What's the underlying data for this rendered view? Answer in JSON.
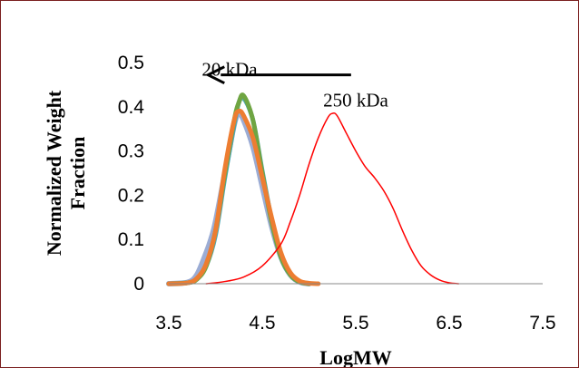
{
  "chart_data": {
    "type": "line",
    "ylabel": "Normalized Weight Fraction",
    "xlabel": "LogMW",
    "xlim": [
      3.5,
      7.5
    ],
    "ylim": [
      0,
      0.5
    ],
    "xticks": [
      "3.5",
      "4.5",
      "5.5",
      "6.5",
      "7.5"
    ],
    "yticks": [
      "0",
      "0.1",
      "0.2",
      "0.3",
      "0.4",
      "0.5"
    ],
    "grid": false,
    "legend": "none",
    "annotations": [
      {
        "text": "20 kDa",
        "x": 4.15,
        "y": 0.485
      },
      {
        "text": "250 kDa",
        "x": 5.5,
        "y": 0.415
      }
    ],
    "arrow": {
      "from": [
        5.45,
        0.472
      ],
      "to": [
        3.92,
        0.472
      ]
    },
    "series": [
      {
        "color": "#ff0000",
        "width": 1.5,
        "x": [
          3.9,
          4.1,
          4.3,
          4.5,
          4.7,
          4.8,
          4.9,
          5.0,
          5.1,
          5.2,
          5.25,
          5.3,
          5.4,
          5.5,
          5.6,
          5.7,
          5.8,
          5.9,
          6.0,
          6.1,
          6.2,
          6.3,
          6.4,
          6.5,
          6.6
        ],
        "y": [
          0.0,
          0.005,
          0.015,
          0.04,
          0.09,
          0.14,
          0.2,
          0.27,
          0.33,
          0.375,
          0.385,
          0.38,
          0.34,
          0.3,
          0.265,
          0.24,
          0.21,
          0.17,
          0.12,
          0.075,
          0.04,
          0.02,
          0.008,
          0.002,
          0.0
        ]
      },
      {
        "color": "#6fa542",
        "width": 5,
        "x": [
          3.5,
          3.7,
          3.8,
          3.9,
          4.0,
          4.1,
          4.2,
          4.25,
          4.3,
          4.4,
          4.5,
          4.6,
          4.7,
          4.8,
          4.9,
          5.0
        ],
        "y": [
          0.0,
          0.002,
          0.01,
          0.04,
          0.12,
          0.25,
          0.37,
          0.41,
          0.425,
          0.37,
          0.25,
          0.14,
          0.06,
          0.02,
          0.004,
          0.0
        ]
      },
      {
        "color": "#ed7d31",
        "width": 5,
        "x": [
          3.5,
          3.7,
          3.8,
          3.9,
          4.0,
          4.1,
          4.2,
          4.25,
          4.3,
          4.4,
          4.5,
          4.6,
          4.7,
          4.8,
          4.9,
          5.0,
          5.1
        ],
        "y": [
          0.0,
          0.002,
          0.012,
          0.045,
          0.12,
          0.26,
          0.37,
          0.39,
          0.38,
          0.33,
          0.24,
          0.15,
          0.07,
          0.025,
          0.006,
          0.001,
          0.0
        ]
      },
      {
        "color": "#4aa7b8",
        "width": 5,
        "x": [
          3.5,
          3.7,
          3.8,
          3.9,
          4.0,
          4.1,
          4.2,
          4.25,
          4.3,
          4.4,
          4.5,
          4.6,
          4.7,
          4.8,
          4.9,
          5.0
        ],
        "y": [
          0.0,
          0.002,
          0.01,
          0.04,
          0.11,
          0.24,
          0.36,
          0.41,
          0.42,
          0.37,
          0.255,
          0.145,
          0.06,
          0.02,
          0.004,
          0.0
        ]
      },
      {
        "color": "#9bacd4",
        "width": 6,
        "x": [
          3.5,
          3.7,
          3.8,
          3.9,
          3.95,
          4.0,
          4.1,
          4.2,
          4.25,
          4.3,
          4.4,
          4.5,
          4.6,
          4.7,
          4.8,
          4.9,
          5.0
        ],
        "y": [
          0.0,
          0.003,
          0.02,
          0.07,
          0.1,
          0.14,
          0.25,
          0.36,
          0.385,
          0.37,
          0.31,
          0.22,
          0.13,
          0.06,
          0.02,
          0.004,
          0.0
        ]
      }
    ]
  }
}
